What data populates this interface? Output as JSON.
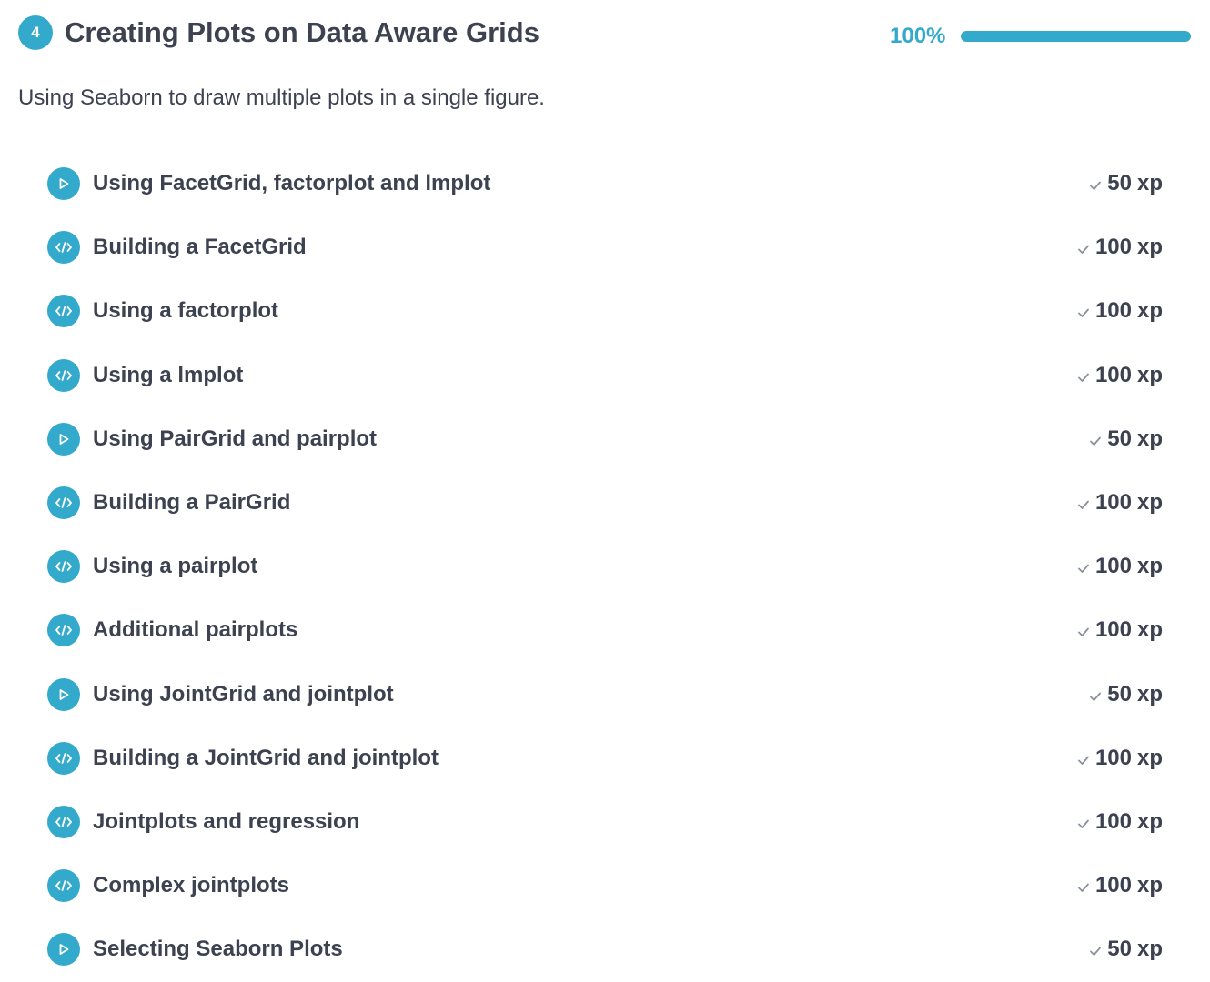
{
  "chapter": {
    "number": "4",
    "title": "Creating Plots on Data Aware Grids",
    "progress_label": "100%",
    "progress_fraction": 1.0,
    "description": "Using Seaborn to draw multiple plots in a single figure."
  },
  "colors": {
    "accent": "#33aacc",
    "text": "#3d4251",
    "muted": "#8b929c",
    "track": "#d9dfe4"
  },
  "exercises": [
    {
      "type": "video",
      "icon": "play-icon",
      "title": "Using FacetGrid, factorplot and lmplot",
      "xp": "50",
      "unit": "xp"
    },
    {
      "type": "code",
      "icon": "code-icon",
      "title": "Building a FacetGrid",
      "xp": "100",
      "unit": "xp"
    },
    {
      "type": "code",
      "icon": "code-icon",
      "title": "Using a factorplot",
      "xp": "100",
      "unit": "xp"
    },
    {
      "type": "code",
      "icon": "code-icon",
      "title": "Using a lmplot",
      "xp": "100",
      "unit": "xp"
    },
    {
      "type": "video",
      "icon": "play-icon",
      "title": "Using PairGrid and pairplot",
      "xp": "50",
      "unit": "xp"
    },
    {
      "type": "code",
      "icon": "code-icon",
      "title": "Building a PairGrid",
      "xp": "100",
      "unit": "xp"
    },
    {
      "type": "code",
      "icon": "code-icon",
      "title": "Using a pairplot",
      "xp": "100",
      "unit": "xp"
    },
    {
      "type": "code",
      "icon": "code-icon",
      "title": "Additional pairplots",
      "xp": "100",
      "unit": "xp"
    },
    {
      "type": "video",
      "icon": "play-icon",
      "title": "Using JointGrid and jointplot",
      "xp": "50",
      "unit": "xp"
    },
    {
      "type": "code",
      "icon": "code-icon",
      "title": "Building a JointGrid and jointplot",
      "xp": "100",
      "unit": "xp"
    },
    {
      "type": "code",
      "icon": "code-icon",
      "title": "Jointplots and regression",
      "xp": "100",
      "unit": "xp"
    },
    {
      "type": "code",
      "icon": "code-icon",
      "title": "Complex jointplots",
      "xp": "100",
      "unit": "xp"
    },
    {
      "type": "video",
      "icon": "play-icon",
      "title": "Selecting Seaborn Plots",
      "xp": "50",
      "unit": "xp"
    }
  ]
}
